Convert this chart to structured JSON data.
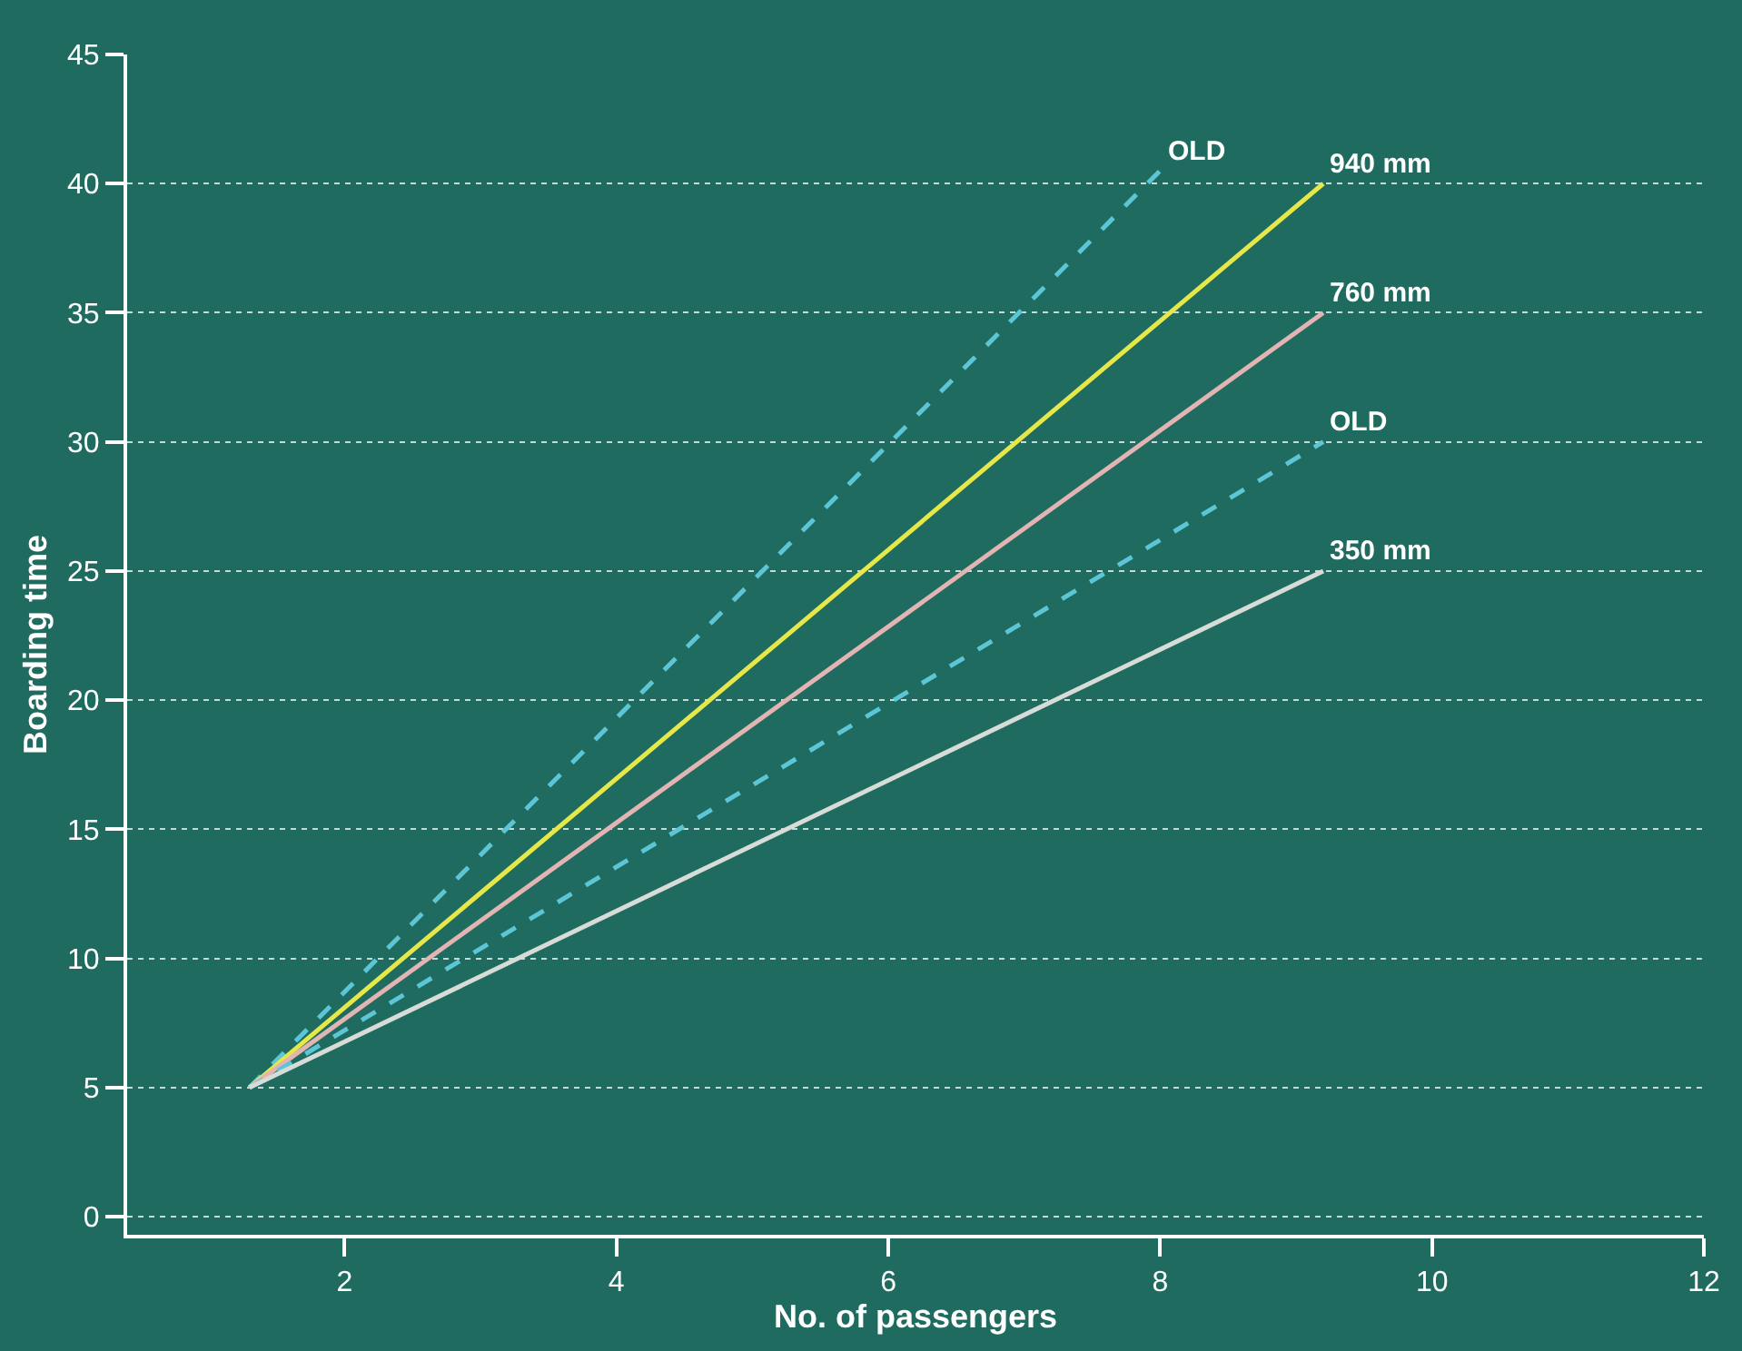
{
  "chart_data": {
    "type": "line",
    "xlabel": "No. of passengers",
    "ylabel": "Boarding time",
    "xlim": [
      0.4,
      12
    ],
    "xticks": [
      2,
      4,
      6,
      8,
      10,
      12
    ],
    "ylim": [
      -0.7,
      45
    ],
    "yticks": [
      0,
      5,
      10,
      15,
      20,
      25,
      30,
      35,
      40,
      45
    ],
    "grid": "y",
    "marker": "none",
    "series": [
      {
        "name": "OLD",
        "color": "#5cc6d6",
        "x": [
          1.3,
          8
        ],
        "values": [
          5,
          40.5
        ],
        "line_style": "dashed"
      },
      {
        "name": "940 mm",
        "color": "#e6e84a",
        "x": [
          1.3,
          9.2
        ],
        "values": [
          5,
          40
        ],
        "line_style": "solid"
      },
      {
        "name": "760 mm",
        "color": "#e2b4b4",
        "x": [
          1.3,
          9.2
        ],
        "values": [
          5,
          35
        ],
        "line_style": "solid"
      },
      {
        "name": "OLD",
        "color": "#5cc6d6",
        "x": [
          1.3,
          9.2
        ],
        "values": [
          5,
          30
        ],
        "line_style": "dashed"
      },
      {
        "name": "350 mm",
        "color": "#d8dcd8",
        "x": [
          1.3,
          9.2
        ],
        "values": [
          5,
          25
        ],
        "line_style": "solid"
      }
    ]
  }
}
